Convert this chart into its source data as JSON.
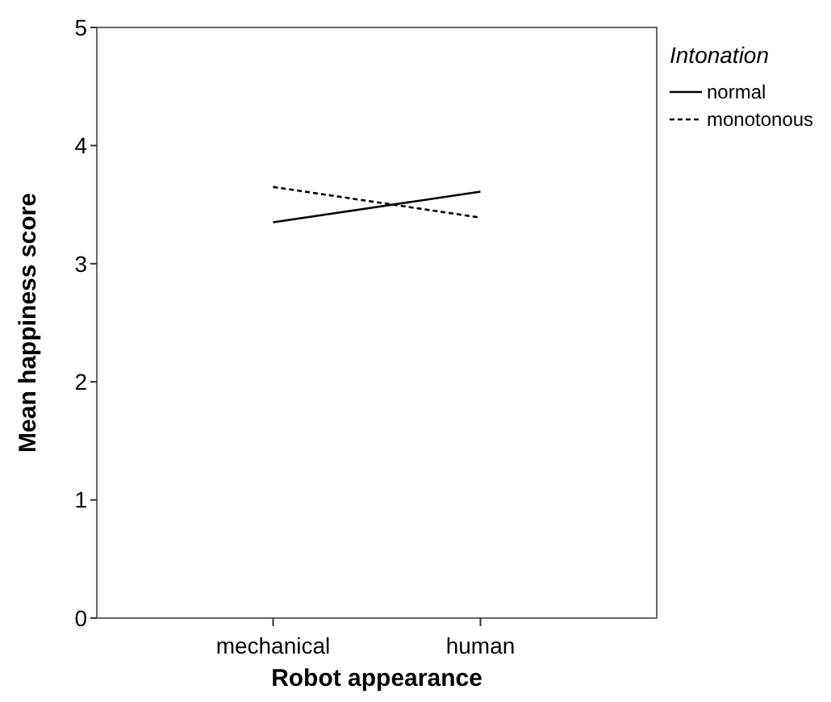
{
  "chart_data": {
    "type": "line",
    "xlabel": "Robot appearance",
    "ylabel": "Mean happiness score",
    "legend_title": "Intonation",
    "legend": "right",
    "categories": [
      "mechanical",
      "human"
    ],
    "series": [
      {
        "name": "normal",
        "color": "#000000",
        "line_style": "solid",
        "values": [
          3.35,
          3.61
        ]
      },
      {
        "name": "monotonous",
        "color": "#000000",
        "line_style": "dashed",
        "values": [
          3.65,
          3.39
        ]
      }
    ],
    "ylim": [
      0,
      5
    ],
    "yticks": [
      0,
      1,
      2,
      3,
      4,
      5
    ],
    "grid": false
  }
}
